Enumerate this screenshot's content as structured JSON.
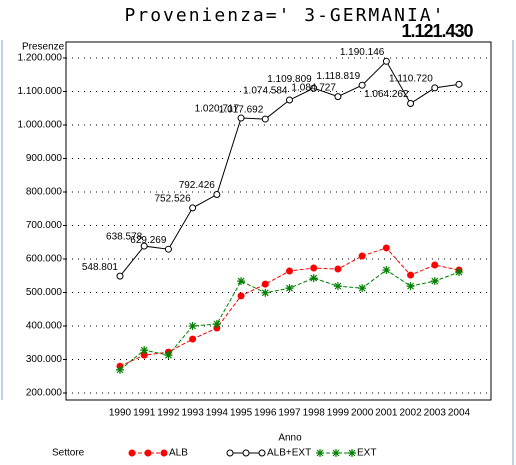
{
  "chart_data": {
    "type": "line",
    "title": "Provenienza=' 3-GERMANIA'",
    "y_label": "Presenze",
    "x_label": "Anno",
    "legend_title": "Settore",
    "categories": [
      "1990",
      "1991",
      "1992",
      "1993",
      "1994",
      "1995",
      "1996",
      "1997",
      "1998",
      "1999",
      "2000",
      "2001",
      "2002",
      "2003",
      "2004"
    ],
    "ylim": [
      200000,
      1200000
    ],
    "yticks": [
      {
        "value": 200000,
        "label": "200.000"
      },
      {
        "value": 300000,
        "label": "300.000"
      },
      {
        "value": 400000,
        "label": "400.000"
      },
      {
        "value": 500000,
        "label": "500.000"
      },
      {
        "value": 600000,
        "label": "600.000"
      },
      {
        "value": 700000,
        "label": "700.000"
      },
      {
        "value": 800000,
        "label": "800.000"
      },
      {
        "value": 900000,
        "label": "900.000"
      },
      {
        "value": 1000000,
        "label": "1.000.000"
      },
      {
        "value": 1100000,
        "label": "1.100.000"
      },
      {
        "value": 1200000,
        "label": "1.200.000"
      }
    ],
    "grid": true,
    "series": [
      {
        "name": "ALB",
        "color": "#ff0000",
        "marker": "dot",
        "dashed": true,
        "values": [
          280000,
          313000,
          322000,
          361000,
          394000,
          490000,
          525000,
          564000,
          573000,
          570000,
          609000,
          633000,
          552000,
          582000,
          567000
        ]
      },
      {
        "name": "ALB+EXT",
        "color": "#000000",
        "marker": "circle",
        "dashed": false,
        "values": [
          548801,
          638578,
          629269,
          752526,
          792426,
          1020717,
          1017692,
          1074584,
          1109809,
          1084727,
          1118819,
          1190146,
          1064262,
          1110720,
          1121430
        ],
        "value_labels": [
          "548.801",
          "638.578",
          "629.269",
          "752.526",
          "792.426",
          "1.020.717",
          "1.017.692",
          "1.074.584",
          "1.109.809",
          "1.084.727",
          "1.118.819",
          "1.190.146",
          "1.064.262",
          "1.110.720",
          "1.121.430"
        ]
      },
      {
        "name": "EXT",
        "color": "#008000",
        "marker": "star",
        "dashed": true,
        "values": [
          269000,
          328000,
          313000,
          400000,
          406000,
          534000,
          499000,
          513000,
          543000,
          519000,
          513000,
          567000,
          519000,
          534000,
          561000
        ]
      }
    ]
  }
}
